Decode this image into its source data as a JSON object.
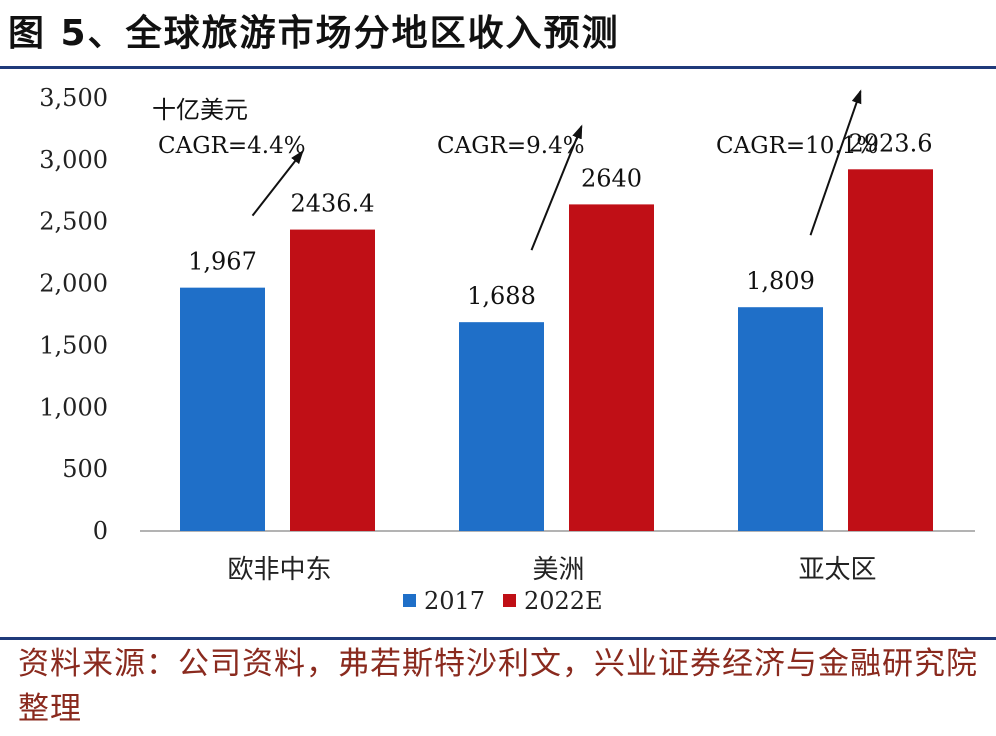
{
  "title": "图 5、全球旅游市场分地区收入预测",
  "source": "资料来源：公司资料，弗若斯特沙利文，兴业证券经济与金融研究院整理",
  "colors": {
    "series_2017": "#1f6fc8",
    "series_2022E": "#c00f16",
    "rule": "#1f3a7a"
  },
  "chart_data": {
    "type": "bar",
    "unit_label": "十亿美元",
    "categories": [
      "欧非中东",
      "美洲",
      "亚太区"
    ],
    "series": [
      {
        "name": "2017",
        "values": [
          1967,
          1688,
          1809
        ],
        "labels": [
          "1,967",
          "1,688",
          "1,809"
        ]
      },
      {
        "name": "2022E",
        "values": [
          2436.4,
          2640,
          2923.6
        ],
        "labels": [
          "2436.4",
          "2640",
          "2923.6"
        ]
      }
    ],
    "annotations": [
      "CAGR=4.4%",
      "CAGR=9.4%",
      "CAGR=10.1%"
    ],
    "ylim": [
      0,
      3500
    ],
    "yticks": [
      "0",
      "500",
      "1,000",
      "1,500",
      "2,000",
      "2,500",
      "3,000",
      "3,500"
    ],
    "legend_position": "bottom",
    "grid": false
  }
}
